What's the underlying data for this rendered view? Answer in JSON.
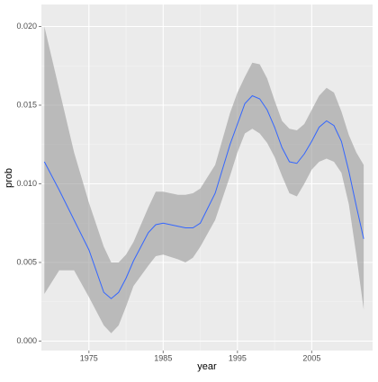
{
  "chart_data": {
    "type": "line",
    "xlabel": "year",
    "ylabel": "prob",
    "x": [
      1969,
      1971,
      1973,
      1975,
      1977,
      1978,
      1979,
      1980,
      1981,
      1983,
      1984,
      1985,
      1987,
      1988,
      1989,
      1990,
      1992,
      1994,
      1995,
      1996,
      1997,
      1998,
      1999,
      2000,
      2001,
      2002,
      2003,
      2004,
      2005,
      2006,
      2007,
      2008,
      2009,
      2010,
      2011,
      2012
    ],
    "values": [
      0.0114,
      0.0096,
      0.0077,
      0.0058,
      0.0031,
      0.0027,
      0.0031,
      0.004,
      0.0051,
      0.0069,
      0.0074,
      0.0075,
      0.0073,
      0.0072,
      0.0072,
      0.0075,
      0.0094,
      0.0125,
      0.0138,
      0.0151,
      0.0156,
      0.0154,
      0.0147,
      0.0136,
      0.0123,
      0.0114,
      0.0113,
      0.0119,
      0.0127,
      0.0136,
      0.014,
      0.0137,
      0.0127,
      0.0108,
      0.0086,
      0.0065
    ],
    "color": "#3366ff",
    "band": {
      "color": "#999999",
      "upper": [
        0.02,
        0.016,
        0.012,
        0.0088,
        0.006,
        0.005,
        0.005,
        0.0055,
        0.0063,
        0.0085,
        0.0095,
        0.0095,
        0.0093,
        0.0093,
        0.0094,
        0.0097,
        0.0112,
        0.0145,
        0.0158,
        0.0168,
        0.0177,
        0.0176,
        0.0167,
        0.0153,
        0.014,
        0.0135,
        0.0134,
        0.0138,
        0.0147,
        0.0156,
        0.0161,
        0.0158,
        0.0146,
        0.0131,
        0.012,
        0.0112
      ],
      "lower": [
        0.003,
        0.0045,
        0.0045,
        0.0028,
        0.001,
        0.0005,
        0.001,
        0.0022,
        0.0035,
        0.0048,
        0.0054,
        0.0055,
        0.0052,
        0.005,
        0.0053,
        0.006,
        0.0077,
        0.0105,
        0.012,
        0.0132,
        0.0135,
        0.0132,
        0.0126,
        0.0117,
        0.0105,
        0.0094,
        0.0092,
        0.01,
        0.0109,
        0.0114,
        0.0116,
        0.0114,
        0.0107,
        0.0087,
        0.0055,
        0.002
      ]
    },
    "xlim": [
      1968.6,
      2013.2
    ],
    "xticks": [
      1975,
      1985,
      1995,
      2005
    ],
    "ylim": [
      -0.0006,
      0.0214
    ],
    "yticks": [
      {
        "value": 0,
        "label": "0.000"
      },
      0.005,
      {
        "value": 0.01,
        "label": "0.010"
      },
      0.015,
      {
        "value": 0.02,
        "label": "0.020"
      }
    ],
    "grid": true,
    "background": "#ebebeb"
  }
}
